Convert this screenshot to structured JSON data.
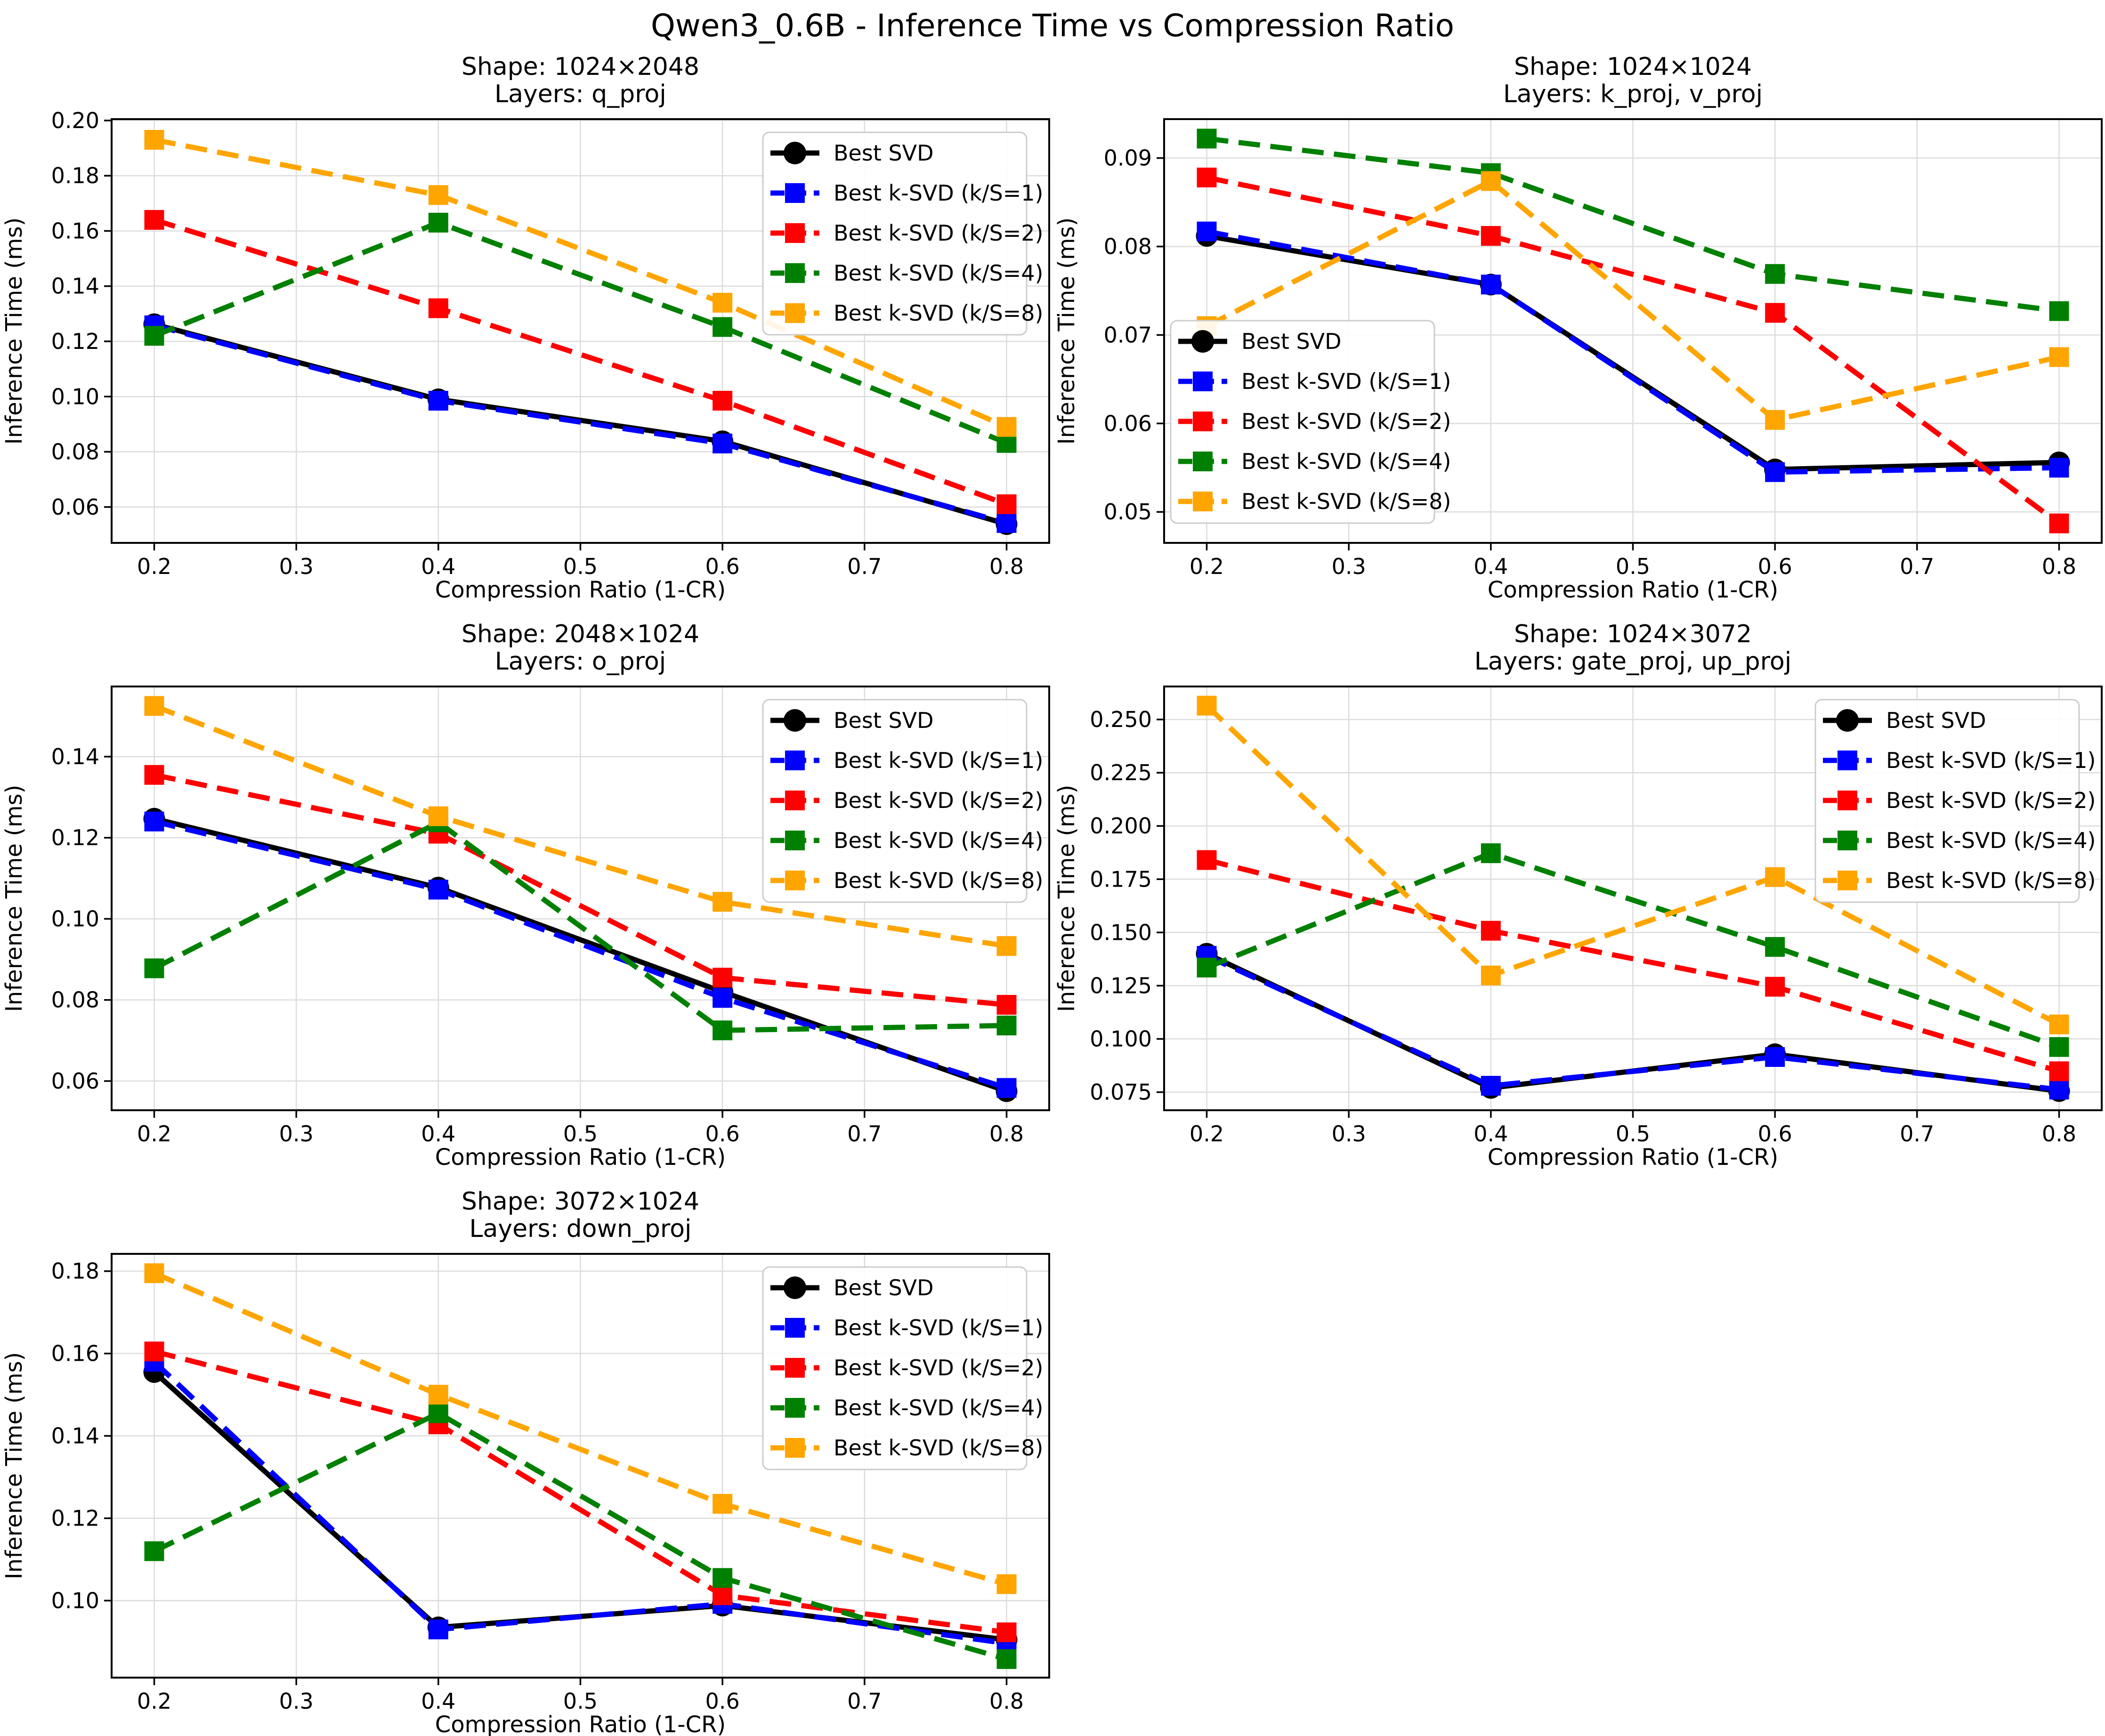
{
  "suptitle": "Qwen3_0.6B - Inference Time vs Compression Ratio",
  "chart_data": {
    "type": "line",
    "xlabel": "Compression Ratio (1-CR)",
    "ylabel": "Inference Time (ms)",
    "x": [
      0.2,
      0.4,
      0.6,
      0.8
    ],
    "xticks": [
      0.2,
      0.3,
      0.4,
      0.5,
      0.6,
      0.7,
      0.8
    ],
    "xlim": [
      0.17,
      0.83
    ],
    "grid": true,
    "grid_color": "#dcdcdc",
    "legend_position_default": "upper-right",
    "series_meta": [
      {
        "key": "svd",
        "label": "Best SVD",
        "color": "#000000",
        "dash": false,
        "marker": "circle"
      },
      {
        "key": "k1",
        "label": "Best k-SVD (k/S=1)",
        "color": "#0000ff",
        "dash": true,
        "marker": "square"
      },
      {
        "key": "k2",
        "label": "Best k-SVD (k/S=2)",
        "color": "#ff0000",
        "dash": true,
        "marker": "square"
      },
      {
        "key": "k4",
        "label": "Best k-SVD (k/S=4)",
        "color": "#008000",
        "dash": true,
        "marker": "square"
      },
      {
        "key": "k8",
        "label": "Best k-SVD (k/S=8)",
        "color": "#ffa500",
        "dash": true,
        "marker": "square"
      }
    ],
    "charts": [
      {
        "id": "q-proj",
        "title_shape": "Shape: 1024×2048",
        "title_layers": "Layers: q_proj",
        "legend_pos": "upper-right",
        "ylim": [
          0.047,
          0.2005
        ],
        "yticks": [
          0.06,
          0.08,
          0.1,
          0.12,
          0.14,
          0.16,
          0.18,
          0.2
        ],
        "ytick_decimals": 2,
        "series": {
          "svd": [
            0.1262,
            0.099,
            0.0838,
            0.0538
          ],
          "k1": [
            0.1258,
            0.0985,
            0.083,
            0.0542
          ],
          "k2": [
            0.164,
            0.132,
            0.0985,
            0.061
          ],
          "k4": [
            0.122,
            0.163,
            0.1252,
            0.0832
          ],
          "k8": [
            0.193,
            0.173,
            0.134,
            0.089
          ]
        }
      },
      {
        "id": "k-proj-v-proj",
        "title_shape": "Shape: 1024×1024",
        "title_layers": "Layers: k_proj, v_proj",
        "legend_pos": "lower-left",
        "ylim": [
          0.0465,
          0.0944
        ],
        "yticks": [
          0.05,
          0.06,
          0.07,
          0.08,
          0.09
        ],
        "ytick_decimals": 2,
        "series": {
          "svd": [
            0.0812,
            0.0757,
            0.0548,
            0.0556
          ],
          "k1": [
            0.0817,
            0.0757,
            0.0545,
            0.055
          ],
          "k2": [
            0.0878,
            0.0812,
            0.0725,
            0.0487
          ],
          "k4": [
            0.0922,
            0.0883,
            0.0769,
            0.0727
          ],
          "k8": [
            0.071,
            0.0874,
            0.0604,
            0.0675
          ]
        }
      },
      {
        "id": "o-proj",
        "title_shape": "Shape: 2048×1024",
        "title_layers": "Layers: o_proj",
        "legend_pos": "upper-right",
        "ylim": [
          0.0528,
          0.1573
        ],
        "yticks": [
          0.06,
          0.08,
          0.1,
          0.12,
          0.14
        ],
        "ytick_decimals": 2,
        "series": {
          "svd": [
            0.1247,
            0.1077,
            0.082,
            0.0575
          ],
          "k1": [
            0.124,
            0.1072,
            0.0805,
            0.0583
          ],
          "k2": [
            0.1355,
            0.121,
            0.0855,
            0.0788
          ],
          "k4": [
            0.0878,
            0.1238,
            0.0725,
            0.0737
          ],
          "k8": [
            0.1525,
            0.1253,
            0.1042,
            0.0933
          ]
        }
      },
      {
        "id": "gate-proj-up-proj",
        "title_shape": "Shape: 1024×3072",
        "title_layers": "Layers: gate_proj, up_proj",
        "legend_pos": "upper-right",
        "ylim": [
          0.0665,
          0.2655
        ],
        "yticks": [
          0.075,
          0.1,
          0.125,
          0.15,
          0.175,
          0.2,
          0.225,
          0.25
        ],
        "ytick_decimals": 3,
        "series": {
          "svd": [
            0.14,
            0.077,
            0.0928,
            0.0755
          ],
          "k1": [
            0.139,
            0.078,
            0.0915,
            0.0762
          ],
          "k2": [
            0.184,
            0.1508,
            0.1245,
            0.0848
          ],
          "k4": [
            0.1335,
            0.1872,
            0.1432,
            0.0962
          ],
          "k8": [
            0.2565,
            0.1298,
            0.176,
            0.1068
          ]
        }
      },
      {
        "id": "down-proj",
        "title_shape": "Shape: 3072×1024",
        "title_layers": "Layers: down_proj",
        "legend_pos": "upper-right",
        "ylim": [
          0.0813,
          0.1842
        ],
        "yticks": [
          0.1,
          0.12,
          0.14,
          0.16,
          0.18
        ],
        "ytick_decimals": 2,
        "series": {
          "svd": [
            0.1555,
            0.0935,
            0.0988,
            0.0905
          ],
          "k1": [
            0.158,
            0.093,
            0.0992,
            0.0896
          ],
          "k2": [
            0.1605,
            0.1428,
            0.1013,
            0.0923
          ],
          "k4": [
            0.112,
            0.1455,
            0.1055,
            0.0858
          ],
          "k8": [
            0.1795,
            0.15,
            0.1235,
            0.104
          ]
        }
      }
    ]
  }
}
